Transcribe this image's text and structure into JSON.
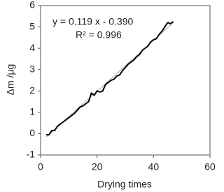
{
  "chart_data": {
    "type": "line",
    "xlabel": "Drying times",
    "ylabel": "Δm /μg",
    "annotations": [
      "y = 0.119 x - 0.390",
      "R² = 0.996"
    ],
    "trendline": {
      "slope": 0.119,
      "intercept": -0.39,
      "color": "#aaaaaa"
    },
    "x": [
      2,
      3,
      4,
      5,
      6,
      7,
      8,
      9,
      10,
      11,
      12,
      13,
      14,
      15,
      16,
      17,
      18,
      19,
      20,
      21,
      22,
      23,
      24,
      25,
      26,
      27,
      28,
      29,
      30,
      31,
      32,
      33,
      34,
      35,
      36,
      37,
      38,
      39,
      40,
      41,
      42,
      43,
      44,
      45,
      46,
      47
    ],
    "series": [
      {
        "name": "Δm",
        "color": "#000000",
        "values": [
          -0.05,
          -0.05,
          0.15,
          0.15,
          0.35,
          0.45,
          0.55,
          0.65,
          0.75,
          0.85,
          0.95,
          1.1,
          1.25,
          1.3,
          1.4,
          1.5,
          1.9,
          1.8,
          2.0,
          1.95,
          2.0,
          2.3,
          2.4,
          2.5,
          2.55,
          2.7,
          2.75,
          2.95,
          3.1,
          3.25,
          3.35,
          3.45,
          3.6,
          3.7,
          3.9,
          4.0,
          4.1,
          4.3,
          4.4,
          4.45,
          4.65,
          4.8,
          5.0,
          5.2,
          5.15,
          5.25
        ]
      }
    ],
    "xlim": [
      0,
      60
    ],
    "xticks": [
      0,
      20,
      40,
      60
    ],
    "ylim": [
      -1,
      6
    ],
    "yticks": [
      -1,
      0,
      1,
      2,
      3,
      4,
      5,
      6
    ],
    "grid": false
  }
}
